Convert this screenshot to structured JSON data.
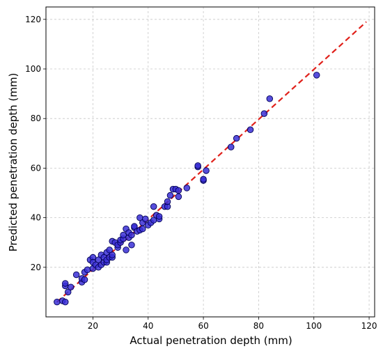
{
  "chart_data": {
    "type": "scatter",
    "title": "",
    "xlabel": "Actual penetration depth (mm)",
    "ylabel": "Predicted penetration depth (mm)",
    "xlim": [
      3,
      122
    ],
    "ylim": [
      0,
      125
    ],
    "xticks": [
      20,
      40,
      60,
      80,
      100,
      120
    ],
    "yticks": [
      20,
      40,
      60,
      80,
      100,
      120
    ],
    "grid": true,
    "marker_color": "#3a2fd6",
    "marker_edge_color": "#000055",
    "reference_line": {
      "from": [
        7,
        6
      ],
      "to": [
        119,
        119
      ],
      "color": "#e0201a",
      "style": "dashed"
    },
    "points": [
      [
        7,
        6
      ],
      [
        9,
        6.5
      ],
      [
        10,
        6
      ],
      [
        10,
        12.5
      ],
      [
        10,
        13.5
      ],
      [
        11,
        10
      ],
      [
        12,
        12
      ],
      [
        14,
        17
      ],
      [
        16,
        14
      ],
      [
        16,
        15.5
      ],
      [
        17,
        15
      ],
      [
        17,
        18
      ],
      [
        18,
        19
      ],
      [
        19,
        23
      ],
      [
        20,
        19.5
      ],
      [
        20,
        24
      ],
      [
        20,
        22
      ],
      [
        21,
        21
      ],
      [
        22,
        20
      ],
      [
        22,
        23
      ],
      [
        23,
        21
      ],
      [
        23,
        25
      ],
      [
        24,
        22
      ],
      [
        24,
        24
      ],
      [
        25,
        22
      ],
      [
        25,
        23
      ],
      [
        25,
        26
      ],
      [
        26,
        24
      ],
      [
        26,
        27
      ],
      [
        27,
        24
      ],
      [
        27,
        25
      ],
      [
        27,
        30.5
      ],
      [
        28,
        30
      ],
      [
        29,
        28
      ],
      [
        29,
        29
      ],
      [
        30,
        30
      ],
      [
        30,
        31
      ],
      [
        31,
        31.5
      ],
      [
        31,
        33
      ],
      [
        32,
        27
      ],
      [
        32,
        35.5
      ],
      [
        33,
        32
      ],
      [
        33,
        34
      ],
      [
        34,
        29
      ],
      [
        34,
        33
      ],
      [
        35,
        36
      ],
      [
        35,
        36.5
      ],
      [
        36,
        34.5
      ],
      [
        37,
        35
      ],
      [
        37,
        40
      ],
      [
        38,
        35.5
      ],
      [
        38,
        38
      ],
      [
        39,
        39.5
      ],
      [
        40,
        37
      ],
      [
        41,
        38
      ],
      [
        42,
        39
      ],
      [
        42,
        44.5
      ],
      [
        43,
        41
      ],
      [
        44,
        39.5
      ],
      [
        44,
        40.5
      ],
      [
        46,
        44.5
      ],
      [
        47,
        44.5
      ],
      [
        47,
        46.5
      ],
      [
        48,
        49
      ],
      [
        49,
        51.5
      ],
      [
        50,
        51.5
      ],
      [
        51,
        48.5
      ],
      [
        51,
        51
      ],
      [
        54,
        52
      ],
      [
        58,
        60.5
      ],
      [
        58,
        61
      ],
      [
        60,
        55
      ],
      [
        60,
        55.5
      ],
      [
        61,
        59
      ],
      [
        70,
        68.5
      ],
      [
        72,
        72
      ],
      [
        77,
        75.5
      ],
      [
        82,
        82
      ],
      [
        84,
        88
      ],
      [
        101,
        97.5
      ]
    ]
  }
}
